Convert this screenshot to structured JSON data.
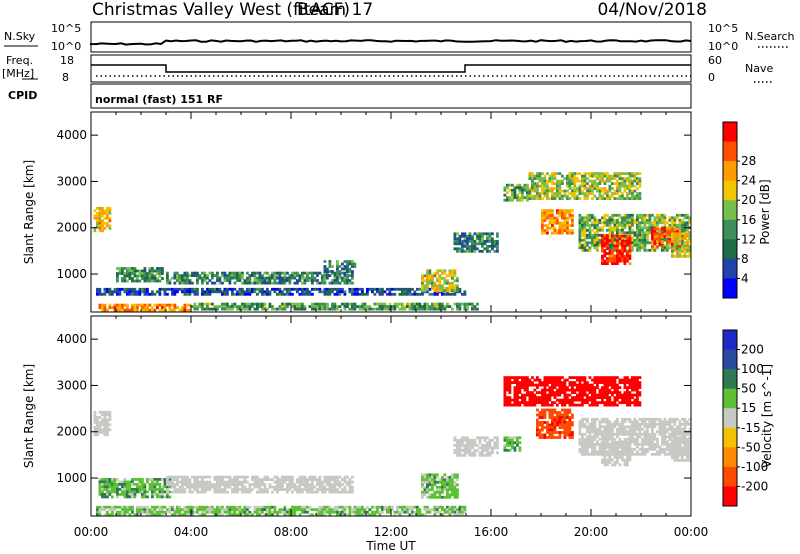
{
  "header": {
    "title": "Christmas Valley West (fitACF)",
    "beam": "Beam 17",
    "date": "04/Nov/2018"
  },
  "params": {
    "nsky_label": "N.Sky",
    "nsearch_label": "N.Search",
    "noise_ticks": [
      "10^5",
      "10^0"
    ],
    "freq_label": "Freq.",
    "freq_unit": "[MHz]",
    "freq_ticks": [
      "18",
      "8"
    ],
    "nave_label": "Nave",
    "nave_ticks": [
      "60",
      "0"
    ],
    "cpid_label": "CPID",
    "cpid_text": "normal (fast) 151 RF"
  },
  "colors": {
    "power": [
      "#0000ff",
      "#2244aa",
      "#1e6b46",
      "#3d8f5a",
      "#76bf4a",
      "#f4c400",
      "#ff9a00",
      "#ff5000",
      "#ff0000"
    ],
    "velocity": [
      "#1f28c8",
      "#2a4aa0",
      "#2e7a52",
      "#5cc234",
      "#c8c8c4",
      "#f2c200",
      "#ff8a00",
      "#ff4a00",
      "#ff0000"
    ]
  },
  "chart_data": [
    {
      "type": "heatmap",
      "parameter": "Power",
      "ylabel": "Slant Range [km]",
      "xlabel": "Time UT",
      "x_ticks": [
        "00:00",
        "04:00",
        "08:00",
        "12:00",
        "16:00",
        "20:00",
        "00:00"
      ],
      "xlim_hours": [
        0,
        24
      ],
      "y_ticks": [
        1000,
        2000,
        3000,
        4000
      ],
      "ylim": [
        180,
        4500
      ],
      "colorbar_label": "Power [dB]",
      "colorbar_ticks": [
        4,
        8,
        12,
        16,
        20,
        24,
        28
      ],
      "colorbar_range": [
        0,
        30
      ],
      "regions": [
        {
          "t": [
            0.1,
            0.8
          ],
          "r": [
            1950,
            2450
          ],
          "value": 20
        },
        {
          "t": [
            1.0,
            2.9
          ],
          "r": [
            850,
            1150
          ],
          "value": 11
        },
        {
          "t": [
            3.0,
            10.5
          ],
          "r": [
            800,
            1050
          ],
          "value": 10
        },
        {
          "t": [
            9.3,
            10.6
          ],
          "r": [
            1050,
            1300
          ],
          "value": 9
        },
        {
          "t": [
            0.2,
            15.0
          ],
          "r": [
            580,
            700
          ],
          "value": 6
        },
        {
          "t": [
            0.3,
            4.0
          ],
          "r": [
            250,
            360
          ],
          "value": 22
        },
        {
          "t": [
            4.0,
            15.5
          ],
          "r": [
            250,
            380
          ],
          "value": 12
        },
        {
          "t": [
            13.2,
            14.7
          ],
          "r": [
            650,
            1100
          ],
          "value": 17
        },
        {
          "t": [
            14.5,
            16.3
          ],
          "r": [
            1500,
            1900
          ],
          "value": 9
        },
        {
          "t": [
            16.5,
            17.5
          ],
          "r": [
            2600,
            2950
          ],
          "value": 13
        },
        {
          "t": [
            17.5,
            22.0
          ],
          "r": [
            2650,
            3200
          ],
          "value": 16
        },
        {
          "t": [
            18.0,
            19.3
          ],
          "r": [
            1900,
            2400
          ],
          "value": 22
        },
        {
          "t": [
            19.5,
            24.0
          ],
          "r": [
            1500,
            2300
          ],
          "value": 14
        },
        {
          "t": [
            20.4,
            21.6
          ],
          "r": [
            1250,
            1850
          ],
          "value": 28
        },
        {
          "t": [
            22.4,
            23.5
          ],
          "r": [
            1600,
            2000
          ],
          "value": 25
        },
        {
          "t": [
            23.2,
            24.0
          ],
          "r": [
            1400,
            1900
          ],
          "value": 18
        }
      ]
    },
    {
      "type": "heatmap",
      "parameter": "Velocity",
      "ylabel": "Slant Range [km]",
      "xlabel": "Time UT",
      "x_ticks": [
        "00:00",
        "04:00",
        "08:00",
        "12:00",
        "16:00",
        "20:00",
        "00:00"
      ],
      "xlim_hours": [
        0,
        24
      ],
      "y_ticks": [
        1000,
        2000,
        3000,
        4000
      ],
      "ylim": [
        180,
        4500
      ],
      "colorbar_label": "Velocity [m s^-1]",
      "colorbar_ticks": [
        200,
        100,
        50,
        15,
        -15,
        -50,
        -100,
        -200
      ],
      "regions": [
        {
          "t": [
            0.1,
            0.8
          ],
          "r": [
            1950,
            2450
          ],
          "value": 0
        },
        {
          "t": [
            0.3,
            3.2
          ],
          "r": [
            600,
            1000
          ],
          "value": 35
        },
        {
          "t": [
            3.0,
            10.5
          ],
          "r": [
            700,
            1050
          ],
          "value": 0
        },
        {
          "t": [
            0.2,
            15.0
          ],
          "r": [
            200,
            400
          ],
          "value": 25
        },
        {
          "t": [
            13.2,
            14.7
          ],
          "r": [
            600,
            1100
          ],
          "value": 30
        },
        {
          "t": [
            14.5,
            16.3
          ],
          "r": [
            1500,
            1900
          ],
          "value": 0
        },
        {
          "t": [
            16.5,
            17.2
          ],
          "r": [
            1600,
            1900
          ],
          "value": 40
        },
        {
          "t": [
            16.5,
            22.0
          ],
          "r": [
            2600,
            3200
          ],
          "value": -230
        },
        {
          "t": [
            17.8,
            19.3
          ],
          "r": [
            1900,
            2500
          ],
          "value": -180
        },
        {
          "t": [
            19.5,
            24.0
          ],
          "r": [
            1500,
            2300
          ],
          "value": 0
        },
        {
          "t": [
            20.4,
            21.6
          ],
          "r": [
            1300,
            1800
          ],
          "value": 0
        },
        {
          "t": [
            23.2,
            24.0
          ],
          "r": [
            1400,
            1900
          ],
          "value": 0
        }
      ]
    }
  ]
}
